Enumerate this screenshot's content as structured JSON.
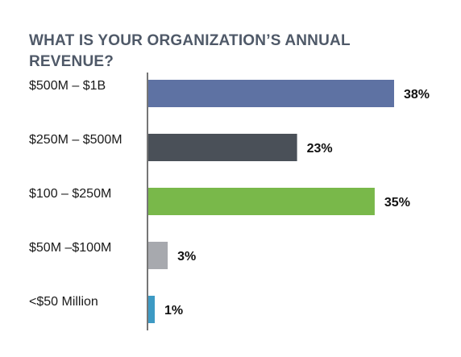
{
  "chart_data": {
    "type": "bar",
    "orientation": "horizontal",
    "title": "WHAT IS YOUR ORGANIZATION’S ANNUAL REVENUE?",
    "categories": [
      "$500M – $1B",
      "$250M – $500M",
      "$100 – $250M",
      "$50M –$100M",
      "<$50 Million"
    ],
    "values": [
      38,
      23,
      35,
      3,
      1
    ],
    "value_labels": [
      "38%",
      "23%",
      "35%",
      "3%",
      "1%"
    ],
    "colors": [
      "#5e72a3",
      "#4a5058",
      "#79b84a",
      "#a7a9ae",
      "#3d9ac4"
    ],
    "axis_color": "#1a1a1a",
    "xlim": [
      0,
      38
    ],
    "grid": false,
    "legend": "none"
  }
}
